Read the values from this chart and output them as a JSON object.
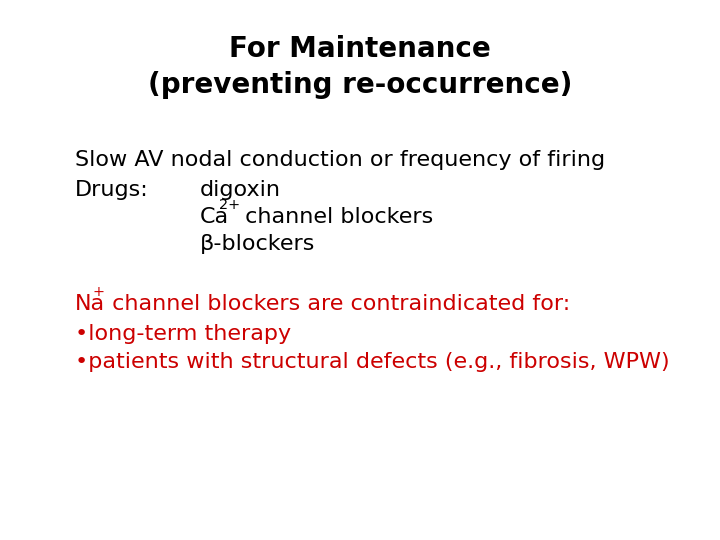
{
  "title_line1": "For Maintenance",
  "title_line2": "(preventing re-occurrence)",
  "title_color": "#000000",
  "title_fontsize": 20,
  "title_fontfamily": "Comic Sans MS",
  "title_fontweight": "bold",
  "body_fontsize": 16,
  "body_fontfamily": "Times New Roman",
  "body_color": "#000000",
  "red_color": "#cc0000",
  "bg_color": "#ffffff",
  "line1": "Slow AV nodal conduction or frequency of firing",
  "line2_label": "Drugs:",
  "line2_drug1": "digoxin",
  "line3_drug2_pre": "Ca",
  "line3_drug2_sup": "2+",
  "line3_drug2_post": " channel blockers",
  "line4_drug3": "β-blockers",
  "red_line1_pre": "Na",
  "red_line1_sup": "+",
  "red_line1_post": " channel blockers are contraindicated for:",
  "red_line2": "•long-term therapy",
  "red_line3": "•patients with structural defects (e.g., fibrosis, WPW)"
}
